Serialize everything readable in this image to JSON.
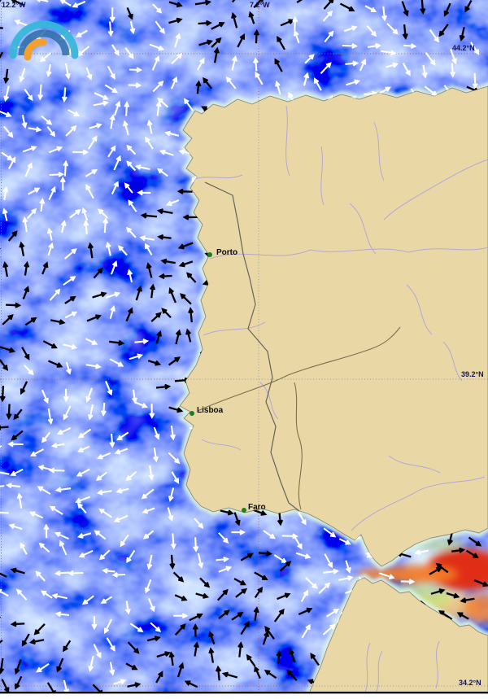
{
  "gridlines": {
    "meridians": [
      {
        "label": "12.2°W"
      },
      {
        "label": "7.2°W"
      }
    ],
    "parallels": [
      {
        "label": "44.2°N"
      },
      {
        "label": "39.2°N"
      },
      {
        "label": "34.2°N"
      }
    ]
  },
  "cities": [
    {
      "name": "Porto"
    },
    {
      "name": "Lisboa"
    },
    {
      "name": "Faro"
    }
  ],
  "logo": {
    "icon": "wave-arcs-logo"
  },
  "palette": {
    "ocean_deep": "#1726c8",
    "ocean_mid": "#2b49ec",
    "ocean_light": "#9fd8ff",
    "ocean_pale": "#e0fbff",
    "current_strong": "#e02f15",
    "current_high": "#f57d28",
    "current_mid": "#ffc862",
    "current_lowgreen": "#c8e87e",
    "land": "#e9d8a6",
    "coast_fringe": "#ddf4e0",
    "coastline": "#8a8a7c",
    "river": "#b4a6d8",
    "river_dark": "#7d6f4e",
    "border": "#64645a",
    "grid_dots_sea": "#b06a3a",
    "grid_dots_land": "#8d96a8",
    "arrow_black": "#000000",
    "arrow_white": "#ffffff",
    "label": "#14145a",
    "city_dot": "#1e7d1e",
    "logo_outer": "#38b6da",
    "logo_middle": "#2e6fa8",
    "logo_inner": "#f2a12e",
    "frame_line": "#000000"
  }
}
